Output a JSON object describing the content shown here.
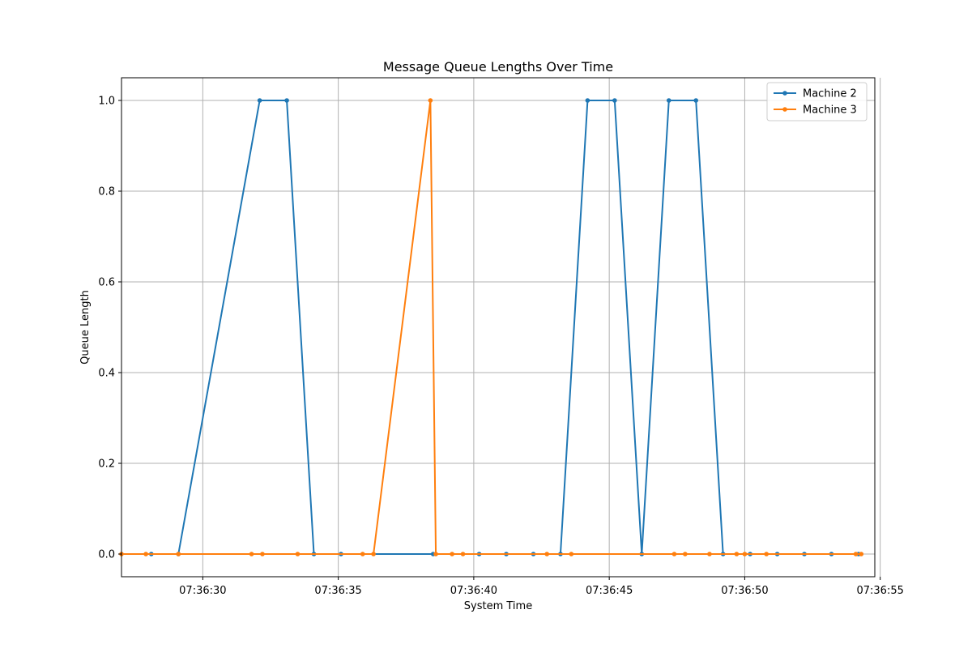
{
  "chart_data": {
    "type": "line",
    "title": "Message Queue Lengths Over Time",
    "xlabel": "System Time",
    "ylabel": "Queue Length",
    "x_unit": "time (HH:MM:SS)",
    "xlim": [
      "07:36:27.0",
      "07:36:54.8"
    ],
    "ylim": [
      -0.05,
      1.05
    ],
    "x_ticks": [
      "07:36:30",
      "07:36:35",
      "07:36:40",
      "07:36:45",
      "07:36:50",
      "07:36:55"
    ],
    "y_ticks": [
      "0.0",
      "0.2",
      "0.4",
      "0.6",
      "0.8",
      "1.0"
    ],
    "grid": true,
    "legend_position": "top-right",
    "series": [
      {
        "name": "Machine 2",
        "color": "#1f77b4",
        "x": [
          "07:36:28.1",
          "07:36:29.1",
          "07:36:32.1",
          "07:36:33.1",
          "07:36:34.1",
          "07:36:35.1",
          "07:36:38.5",
          "07:36:40.2",
          "07:36:41.2",
          "07:36:42.2",
          "07:36:43.2",
          "07:36:44.2",
          "07:36:45.2",
          "07:36:46.2",
          "07:36:47.2",
          "07:36:48.2",
          "07:36:49.2",
          "07:36:50.2",
          "07:36:51.2",
          "07:36:52.2",
          "07:36:53.2",
          "07:36:54.2"
        ],
        "y": [
          0,
          0,
          1,
          1,
          0,
          0,
          0,
          0,
          0,
          0,
          0,
          1,
          1,
          0,
          1,
          1,
          0,
          0,
          0,
          0,
          0,
          0
        ]
      },
      {
        "name": "Machine 3",
        "color": "#ff7f0e",
        "x": [
          "07:36:27.0",
          "07:36:27.9",
          "07:36:29.1",
          "07:36:31.8",
          "07:36:32.2",
          "07:36:33.5",
          "07:36:35.9",
          "07:36:36.3",
          "07:36:38.4",
          "07:36:38.6",
          "07:36:39.2",
          "07:36:39.6",
          "07:36:42.7",
          "07:36:43.6",
          "07:36:47.4",
          "07:36:47.8",
          "07:36:48.7",
          "07:36:49.7",
          "07:36:50.0",
          "07:36:50.8",
          "07:36:54.1",
          "07:36:54.3"
        ],
        "y": [
          0,
          0,
          0,
          0,
          0,
          0,
          0,
          0,
          1,
          0,
          0,
          0,
          0,
          0,
          0,
          0,
          0,
          0,
          0,
          0,
          0,
          0
        ]
      }
    ]
  }
}
